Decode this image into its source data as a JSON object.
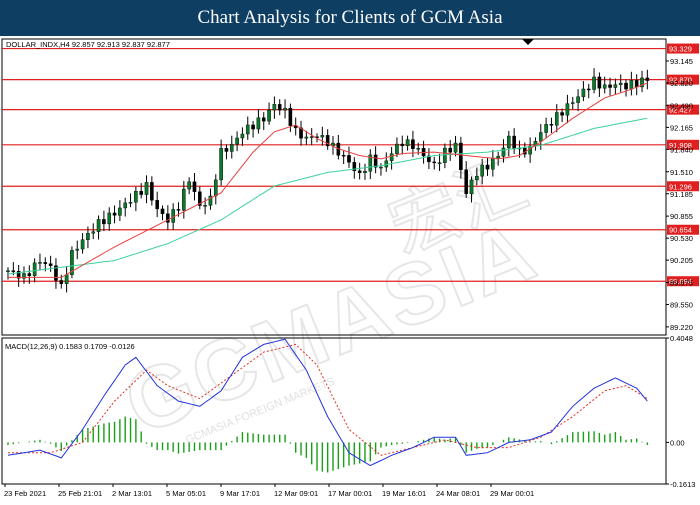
{
  "banner_title": "Chart Analysis for Clients of GCM Asia",
  "watermark": {
    "text": "GCMASIA",
    "brand_cjk": "宏汇",
    "small": "GCMASIA FOREIGN MARKETS"
  },
  "colors": {
    "banner": "#0f3e63",
    "level": "#e02020",
    "label_bg": "#e02020",
    "candle": "#0a7a2a",
    "ma_fast": "#e84040",
    "ma_slow": "#3cd29a",
    "macd_line": "#2233dd",
    "signal": "#e03020",
    "hist": "#18a018"
  },
  "chart_data": [
    {
      "type": "candlestick",
      "title": "DOLLAR_INDX,H4  92.857 92.913 92.837 92.877",
      "ylim": [
        89.1,
        93.47
      ],
      "y_ticks": [
        93.145,
        92.82,
        92.49,
        92.165,
        91.84,
        91.51,
        91.185,
        90.855,
        90.53,
        90.205,
        89.875,
        89.55,
        89.22
      ],
      "x_ticks": [
        "23 Feb 2021",
        "25 Feb 21:01",
        "2 Mar 13:01",
        "5 Mar 05:01",
        "9 Mar 17:01",
        "12 Mar 09:01",
        "17 Mar 00:01",
        "19 Mar 16:01",
        "24 Mar 08:01",
        "29 Mar 00:01"
      ],
      "levels": [
        93.329,
        92.87,
        92.427,
        91.908,
        91.296,
        90.654,
        89.894
      ],
      "close_series": [
        [
          0,
          90.05
        ],
        [
          3,
          89.95
        ],
        [
          6,
          90.2
        ],
        [
          8,
          90.1
        ],
        [
          10,
          89.8
        ],
        [
          12,
          90.3
        ],
        [
          14,
          90.5
        ],
        [
          17,
          90.75
        ],
        [
          20,
          90.9
        ],
        [
          23,
          91.1
        ],
        [
          26,
          91.3
        ],
        [
          28,
          90.95
        ],
        [
          30,
          90.8
        ],
        [
          32,
          91.0
        ],
        [
          34,
          91.4
        ],
        [
          36,
          91.0
        ],
        [
          38,
          91.1
        ],
        [
          40,
          91.8
        ],
        [
          42,
          91.9
        ],
        [
          44,
          92.1
        ],
        [
          46,
          92.2
        ],
        [
          48,
          92.3
        ],
        [
          50,
          92.5
        ],
        [
          52,
          92.4
        ],
        [
          54,
          92.1
        ],
        [
          56,
          92.0
        ],
        [
          58,
          92.05
        ],
        [
          60,
          91.95
        ],
        [
          62,
          91.8
        ],
        [
          64,
          91.65
        ],
        [
          66,
          91.45
        ],
        [
          68,
          91.7
        ],
        [
          70,
          91.55
        ],
        [
          72,
          91.8
        ],
        [
          74,
          91.95
        ],
        [
          76,
          91.9
        ],
        [
          78,
          91.75
        ],
        [
          80,
          91.6
        ],
        [
          82,
          91.8
        ],
        [
          84,
          91.9
        ],
        [
          86,
          91.2
        ],
        [
          88,
          91.5
        ],
        [
          90,
          91.6
        ],
        [
          92,
          91.75
        ],
        [
          94,
          92.0
        ],
        [
          96,
          91.8
        ],
        [
          98,
          91.85
        ],
        [
          100,
          92.1
        ],
        [
          102,
          92.25
        ],
        [
          104,
          92.4
        ],
        [
          106,
          92.55
        ],
        [
          108,
          92.7
        ],
        [
          110,
          92.85
        ],
        [
          112,
          92.75
        ],
        [
          114,
          92.8
        ],
        [
          116,
          92.78
        ],
        [
          118,
          92.82
        ],
        [
          120,
          92.88
        ]
      ],
      "ma_fast": [
        [
          0,
          89.95
        ],
        [
          10,
          89.95
        ],
        [
          20,
          90.4
        ],
        [
          30,
          90.8
        ],
        [
          40,
          91.2
        ],
        [
          46,
          91.8
        ],
        [
          50,
          92.1
        ],
        [
          54,
          92.2
        ],
        [
          58,
          92.0
        ],
        [
          62,
          91.85
        ],
        [
          66,
          91.75
        ],
        [
          70,
          91.7
        ],
        [
          74,
          91.78
        ],
        [
          80,
          91.8
        ],
        [
          86,
          91.75
        ],
        [
          92,
          91.7
        ],
        [
          96,
          91.75
        ],
        [
          100,
          91.95
        ],
        [
          106,
          92.3
        ],
        [
          112,
          92.6
        ],
        [
          116,
          92.7
        ],
        [
          120,
          92.82
        ]
      ],
      "ma_slow": [
        [
          0,
          90.0
        ],
        [
          20,
          90.2
        ],
        [
          30,
          90.45
        ],
        [
          40,
          90.8
        ],
        [
          50,
          91.3
        ],
        [
          60,
          91.5
        ],
        [
          70,
          91.6
        ],
        [
          80,
          91.75
        ],
        [
          90,
          91.8
        ],
        [
          100,
          91.9
        ],
        [
          110,
          92.15
        ],
        [
          120,
          92.3
        ]
      ]
    },
    {
      "type": "macd",
      "title": "MACD(12,26,9) 0.1583 0.1709 -0.0126",
      "ylim": [
        -0.1613,
        0.4048
      ],
      "y_ticks": [
        0.4048,
        0.0,
        -0.1613
      ],
      "macd": [
        [
          0,
          -0.05
        ],
        [
          6,
          -0.03
        ],
        [
          10,
          -0.06
        ],
        [
          14,
          0.05
        ],
        [
          18,
          0.18
        ],
        [
          22,
          0.3
        ],
        [
          24,
          0.33
        ],
        [
          28,
          0.22
        ],
        [
          32,
          0.16
        ],
        [
          36,
          0.14
        ],
        [
          40,
          0.2
        ],
        [
          44,
          0.33
        ],
        [
          48,
          0.38
        ],
        [
          52,
          0.4
        ],
        [
          56,
          0.28
        ],
        [
          60,
          0.1
        ],
        [
          64,
          -0.04
        ],
        [
          68,
          -0.09
        ],
        [
          72,
          -0.05
        ],
        [
          76,
          -0.02
        ],
        [
          80,
          0.02
        ],
        [
          84,
          0.02
        ],
        [
          86,
          -0.05
        ],
        [
          90,
          -0.04
        ],
        [
          94,
          0.0
        ],
        [
          98,
          0.01
        ],
        [
          102,
          0.04
        ],
        [
          106,
          0.14
        ],
        [
          110,
          0.21
        ],
        [
          114,
          0.25
        ],
        [
          118,
          0.21
        ],
        [
          120,
          0.16
        ]
      ],
      "signal": [
        [
          0,
          -0.04
        ],
        [
          8,
          -0.04
        ],
        [
          14,
          0.0
        ],
        [
          20,
          0.16
        ],
        [
          26,
          0.28
        ],
        [
          30,
          0.22
        ],
        [
          36,
          0.17
        ],
        [
          42,
          0.26
        ],
        [
          48,
          0.35
        ],
        [
          54,
          0.38
        ],
        [
          58,
          0.3
        ],
        [
          64,
          0.05
        ],
        [
          70,
          -0.05
        ],
        [
          76,
          -0.02
        ],
        [
          82,
          0.01
        ],
        [
          88,
          -0.02
        ],
        [
          94,
          -0.02
        ],
        [
          100,
          0.02
        ],
        [
          106,
          0.1
        ],
        [
          112,
          0.2
        ],
        [
          116,
          0.22
        ],
        [
          120,
          0.17
        ]
      ]
    }
  ]
}
